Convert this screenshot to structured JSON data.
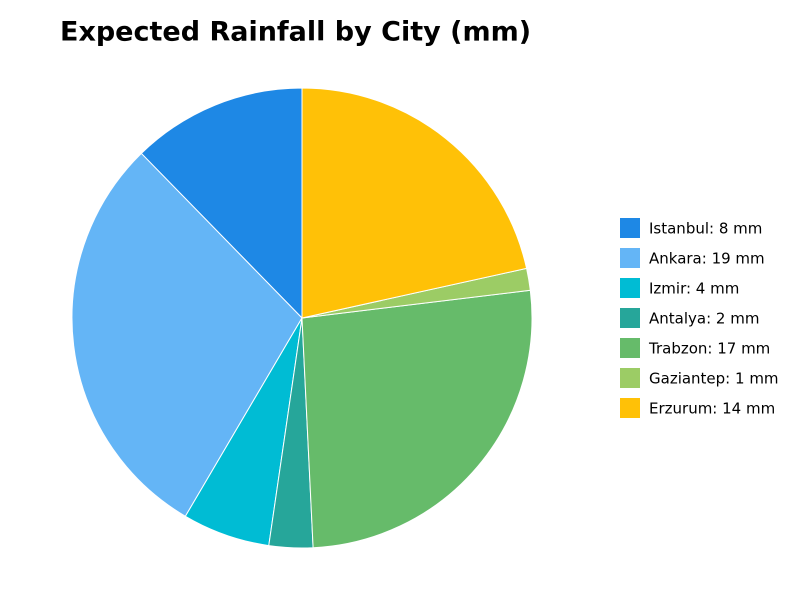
{
  "chart_data": {
    "type": "pie",
    "title": "Expected Rainfall by City (mm)",
    "categories": [
      "Istanbul: 8 mm",
      "Ankara: 19 mm",
      "Izmir: 4 mm",
      "Antalya: 2 mm",
      "Trabzon: 17 mm",
      "Gaziantep: 1 mm",
      "Erzurum: 14 mm"
    ],
    "values": [
      8,
      19,
      4,
      2,
      17,
      1,
      14
    ],
    "colors": [
      "#1e88e5",
      "#64b5f6",
      "#00bcd4",
      "#26a69a",
      "#66bb6a",
      "#9ccc65",
      "#ffc107"
    ],
    "legend": "right"
  }
}
